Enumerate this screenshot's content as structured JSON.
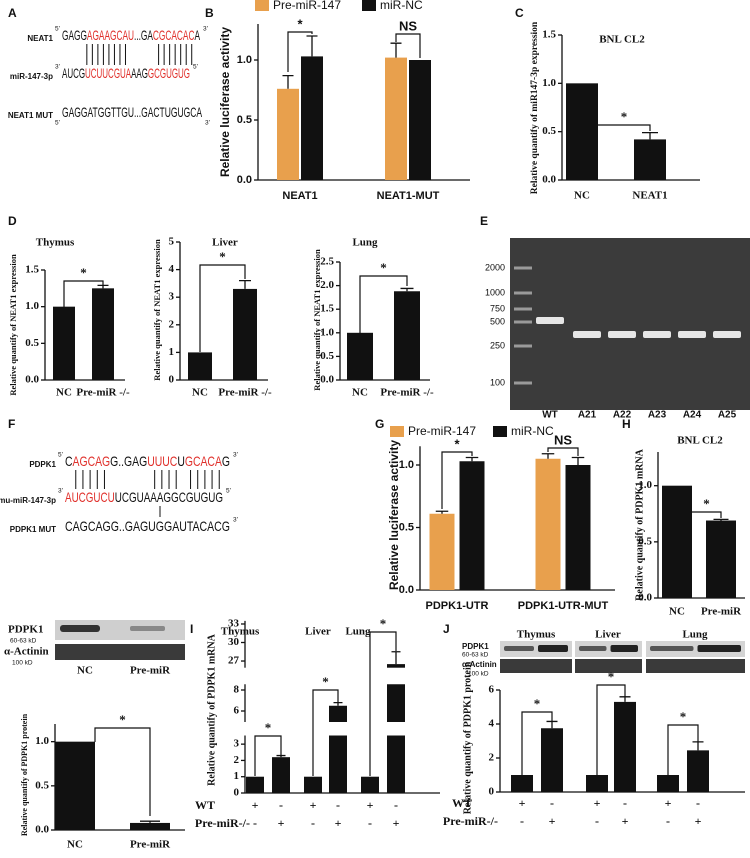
{
  "panel_labels": [
    "A",
    "B",
    "C",
    "D",
    "E",
    "F",
    "G",
    "H",
    "I",
    "J"
  ],
  "sequence_panels": [
    {
      "lines": [
        {
          "label": "NEAT1",
          "left": "5'",
          "right": "3'",
          "segments": [
            {
              "text": "GAGG",
              "color": "#111111"
            },
            {
              "text": "AGAAGCAU",
              "color": "#e0302b"
            },
            {
              "text": "...GA",
              "color": "#111111"
            },
            {
              "text": "CGCACAC",
              "color": "#e0302b"
            },
            {
              "text": "A",
              "color": "#111111"
            }
          ]
        },
        {
          "label": "miR-147-3p",
          "left": "3'",
          "right": "5'",
          "segments": [
            {
              "text": "AUCG",
              "color": "#111111"
            },
            {
              "text": "UCUUCGUA",
              "color": "#e0302b"
            },
            {
              "text": "AAG",
              "color": "#111111"
            },
            {
              "text": "GCGUGUG",
              "color": "#e0302b"
            }
          ]
        },
        {
          "label": "NEAT1 MUT",
          "left": "5'",
          "right": "3'",
          "segments": [
            {
              "text": "GAGGATGGTTGU...GACTUGUGCA",
              "color": "#111111"
            }
          ]
        }
      ]
    },
    {
      "lines": [
        {
          "label": "PDPK1",
          "left": "5'",
          "right": "3'",
          "segments": [
            {
              "text": "C",
              "color": "#111111"
            },
            {
              "text": "AGCAG",
              "color": "#e0302b"
            },
            {
              "text": "G..GAG",
              "color": "#111111"
            },
            {
              "text": "UUUC",
              "color": "#e0302b"
            },
            {
              "text": "U",
              "color": "#111111"
            },
            {
              "text": "GCACA",
              "color": "#e0302b"
            },
            {
              "text": "G",
              "color": "#111111"
            }
          ]
        },
        {
          "label": "mmu-miR-147-3p",
          "left": "3'",
          "right": "5'",
          "segments": [
            {
              "text": "AUCGUCU",
              "color": "#e0302b"
            },
            {
              "text": "UCGUAAAGGCGUGUG",
              "color": "#111111"
            }
          ]
        },
        {
          "label": "PDPK1 MUT",
          "right": "3'",
          "segments": [
            {
              "text": "CAGCAGG..GAGUGGAUTACACG",
              "color": "#111111"
            }
          ]
        }
      ]
    }
  ],
  "gel": {
    "ladder": [
      2000,
      1000,
      750,
      500,
      250,
      100
    ],
    "lanes": [
      "WT",
      "A21",
      "A22",
      "A23",
      "A24",
      "A25"
    ]
  },
  "blots": [
    {
      "protein": "PDPK1",
      "protein_kd": "60-63 kD",
      "control": "α-Actinin",
      "control_kd": "100 kD",
      "lanes": [
        "NC",
        "Pre-miR"
      ]
    },
    {
      "protein": "PDPK1",
      "protein_kd": "60-63 kD",
      "control": "α-Actinin",
      "control_kd": "100 kD",
      "tissues": [
        "Thymus",
        "Liver",
        "Lung"
      ]
    }
  ],
  "chart_data": [
    {
      "type": "bar",
      "ylabel": "Relative luciferase activity",
      "categories": [
        "NEAT1",
        "NEAT1-MUT"
      ],
      "series": [
        {
          "name": "Pre-miR-147",
          "color": "#e8a04d",
          "values": [
            0.76,
            1.02
          ],
          "errors": [
            0.11,
            0.12
          ]
        },
        {
          "name": "miR-NC",
          "color": "#111111",
          "values": [
            1.03,
            1.0
          ],
          "errors": [
            0.17,
            null
          ]
        }
      ],
      "ylim": [
        0,
        1.3
      ],
      "yticks": [
        {
          "value": 0,
          "label": "0.0"
        },
        0.5,
        {
          "value": 1,
          "label": "1.0"
        }
      ],
      "legend": "top",
      "annotations": [
        "*",
        "NS"
      ]
    },
    {
      "type": "bar",
      "title": "BNL CL2",
      "ylabel": "Relative quantify of  miR147-3p expression",
      "categories": [
        "NC",
        "NEAT1"
      ],
      "values": [
        1.0,
        0.42
      ],
      "errors": [
        null,
        0.07
      ],
      "color": "#111111",
      "ylim": [
        0,
        1.5
      ],
      "yticks": [
        {
          "value": 0,
          "label": "0.0"
        },
        0.5,
        {
          "value": 1,
          "label": "1.0"
        },
        1.5
      ],
      "annotations": [
        "*"
      ]
    },
    {
      "type": "bar",
      "title": "Thymus",
      "ylabel": "Relative quantify of NEAT1 expression",
      "categories": [
        "NC",
        "Pre-miR -/-"
      ],
      "values": [
        1.0,
        1.25
      ],
      "errors": [
        null,
        0.04
      ],
      "color": "#111111",
      "ylim": [
        0,
        1.5
      ],
      "yticks": [
        {
          "value": 0,
          "label": "0.0"
        },
        0.5,
        {
          "value": 1,
          "label": "1.0"
        },
        1.5
      ],
      "annotations": [
        "*"
      ]
    },
    {
      "type": "bar",
      "title": "Liver",
      "ylabel": "Relative quantify of NEAT1 expression",
      "categories": [
        "NC",
        "Pre-miR -/-"
      ],
      "values": [
        1.0,
        3.3
      ],
      "errors": [
        null,
        0.3
      ],
      "color": "#111111",
      "ylim": [
        0,
        5
      ],
      "yticks": [
        0,
        1,
        2,
        3,
        4,
        5
      ],
      "annotations": [
        "*"
      ]
    },
    {
      "type": "bar",
      "title": "Lung",
      "ylabel": "Relative quantify of NEAT1 expression",
      "categories": [
        "NC",
        "Pre-miR -/-"
      ],
      "values": [
        1.0,
        1.88
      ],
      "errors": [
        null,
        0.06
      ],
      "color": "#111111",
      "ylim": [
        0,
        2.5
      ],
      "yticks": [
        {
          "value": 0,
          "label": "0.0"
        },
        0.5,
        {
          "value": 1,
          "label": "1.0"
        },
        1.5,
        {
          "value": 2,
          "label": "2.0"
        },
        2.5
      ],
      "annotations": [
        "*"
      ]
    },
    {
      "type": "bar",
      "ylabel": "Relative luciferase activity",
      "categories": [
        "PDPK1-UTR",
        "PDPK1-UTR-MUT"
      ],
      "series": [
        {
          "name": "Pre-miR-147",
          "color": "#e8a04d",
          "values": [
            0.61,
            1.05
          ],
          "errors": [
            0.02,
            0.04
          ]
        },
        {
          "name": "miR-NC",
          "color": "#111111",
          "values": [
            1.03,
            1.0
          ],
          "errors": [
            0.03,
            0.06
          ]
        }
      ],
      "ylim": [
        0,
        1.15
      ],
      "yticks": [
        {
          "value": 0,
          "label": "0.0"
        },
        0.5,
        {
          "value": 1,
          "label": "1.0"
        }
      ],
      "legend": "top",
      "annotations": [
        "*",
        "NS"
      ]
    },
    {
      "type": "bar",
      "title": "BNL CL2",
      "ylabel": "Relative quantify of PDPK1 mRNA",
      "categories": [
        "NC",
        "Pre-miR"
      ],
      "values": [
        1.0,
        0.69
      ],
      "errors": [
        null,
        0.01
      ],
      "color": "#111111",
      "ylim": [
        0,
        1.3
      ],
      "yticks": [
        {
          "value": 0,
          "label": "0.0"
        },
        0.5,
        {
          "value": 1,
          "label": "1.0"
        }
      ],
      "annotations": [
        "*"
      ]
    },
    {
      "type": "bar",
      "ylabel": "Relative quantify of PDPK1 protein",
      "categories": [
        "NC",
        "Pre-miR"
      ],
      "values": [
        1.0,
        0.08
      ],
      "errors": [
        null,
        0.02
      ],
      "color": "#111111",
      "ylim": [
        0,
        1.2
      ],
      "yticks": [
        {
          "value": 0,
          "label": "0.0"
        },
        0.5,
        {
          "value": 1,
          "label": "1.0"
        }
      ],
      "annotations": [
        "*"
      ]
    },
    {
      "type": "bar",
      "ylabel": "Relative quantify of PDPK1 mRNA",
      "groups": [
        "Thymus",
        "Liver",
        "Lung"
      ],
      "values": [
        1.0,
        2.2,
        1.0,
        6.5,
        1.0,
        26.5
      ],
      "errors": [
        null,
        0.1,
        null,
        0.3,
        null,
        2.0
      ],
      "color": "#111111",
      "ylim": [
        0,
        33.5
      ],
      "broken_axis": [
        [
          0,
          3.5
        ],
        [
          5,
          8.5
        ],
        [
          26,
          33.5
        ]
      ],
      "yticks": [
        0,
        1,
        2,
        3,
        6,
        8,
        27,
        30,
        33
      ],
      "rows": [
        {
          "label": "WT",
          "signs": [
            "+",
            "-",
            "+",
            "-",
            "+",
            "-"
          ]
        },
        {
          "label": "Pre-miR-/-",
          "signs": [
            "-",
            "+",
            "-",
            "+",
            "-",
            "+"
          ]
        }
      ],
      "annotations": [
        "*",
        "*",
        "*"
      ]
    },
    {
      "type": "bar",
      "ylabel": "Relative quantify of PDPK1 protein",
      "values": [
        1.0,
        3.75,
        1.0,
        5.3,
        1.0,
        2.45
      ],
      "errors": [
        null,
        0.4,
        null,
        0.3,
        null,
        0.5
      ],
      "color": "#111111",
      "ylim": [
        0,
        6
      ],
      "yticks": [
        0,
        2,
        4,
        6
      ],
      "rows": [
        {
          "label": "WT",
          "signs": [
            "+",
            "-",
            "+",
            "-",
            "+",
            "-"
          ]
        },
        {
          "label": "Pre-miR-/-",
          "signs": [
            "-",
            "+",
            "-",
            "+",
            "-",
            "+"
          ]
        }
      ],
      "annotations": [
        "*",
        "*",
        "*"
      ]
    }
  ]
}
